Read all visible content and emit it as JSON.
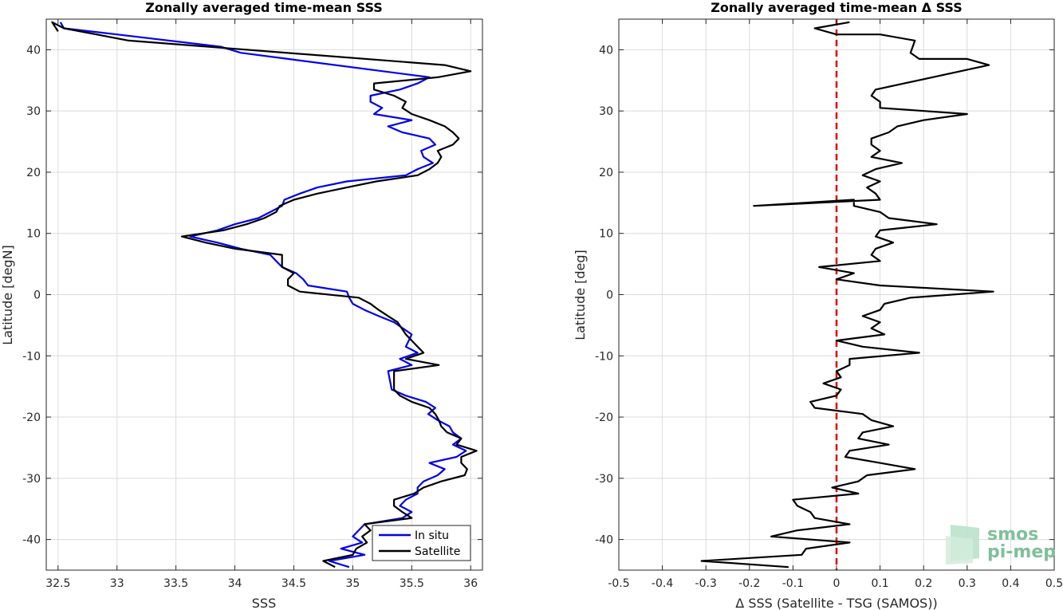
{
  "chart_data": [
    {
      "type": "line",
      "title": "Zonally averaged time-mean SSS",
      "xlabel": "SSS",
      "ylabel": "Latitude [degN]",
      "xlim": [
        32.4,
        36.1
      ],
      "ylim": [
        -45,
        45
      ],
      "xticks": [
        "32.5",
        "33",
        "33.5",
        "34",
        "34.5",
        "35",
        "35.5",
        "36"
      ],
      "yticks": [
        "40",
        "30",
        "20",
        "10",
        "0",
        "-10",
        "-20",
        "-30",
        "-40"
      ],
      "grid": true,
      "legend_position": "bottom-right",
      "series": [
        {
          "name": "In situ",
          "color": "#0000ee",
          "x": [
            34.97,
            34.8,
            35.1,
            34.9,
            35.08,
            35.0,
            35.05,
            35.1,
            35.42,
            35.5,
            35.4,
            35.45,
            35.55,
            35.55,
            35.6,
            35.72,
            35.78,
            35.65,
            35.88,
            35.96,
            35.85,
            35.92,
            35.85,
            35.82,
            35.72,
            35.64,
            35.7,
            35.62,
            35.45,
            35.33,
            35.3,
            35.5,
            35.4,
            35.55,
            35.45,
            35.5,
            35.35,
            35.22,
            35.1,
            35.0,
            34.97,
            34.95,
            34.62,
            34.58,
            34.52,
            34.4,
            34.35,
            34.3,
            34.05,
            33.85,
            33.62,
            33.85,
            34.0,
            34.2,
            34.3,
            34.4,
            34.42,
            34.55,
            34.7,
            34.95,
            35.45,
            35.55,
            35.68,
            35.6,
            35.58,
            35.7,
            35.65,
            35.42,
            35.3,
            35.5,
            35.18,
            35.25,
            35.15,
            35.15,
            35.4,
            35.55,
            35.65,
            34.45,
            34.05,
            33.88,
            33.0,
            32.55,
            32.52
          ],
          "y": [
            -44.5,
            -43.5,
            -42.5,
            -41.5,
            -40.5,
            -39.5,
            -38.5,
            -37.5,
            -36.5,
            -35.5,
            -34.5,
            -33.5,
            -32.5,
            -31.5,
            -30.5,
            -29.5,
            -28.5,
            -27.5,
            -26.5,
            -25.5,
            -24.5,
            -23.5,
            -22.5,
            -21.5,
            -20.5,
            -19.5,
            -18.5,
            -17.5,
            -16.5,
            -15.5,
            -12.5,
            -11.5,
            -10.5,
            -9.5,
            -8.5,
            -6.5,
            -4.5,
            -3.5,
            -2.5,
            -1.5,
            -0.5,
            0.5,
            1.5,
            2.5,
            3.5,
            4.5,
            5.5,
            6.5,
            7.5,
            8.5,
            9.5,
            10.5,
            11.5,
            12.5,
            13.5,
            14.5,
            15.5,
            16.5,
            17.5,
            18.5,
            19.5,
            20.5,
            21.5,
            22.5,
            23.5,
            24.5,
            25.5,
            26.5,
            27.5,
            28.5,
            29.5,
            30.5,
            31.5,
            32.5,
            33.5,
            34.5,
            35.5,
            38.5,
            39.5,
            40.5,
            42.5,
            43.5,
            44.5
          ]
        },
        {
          "name": "Satellite",
          "color": "#000000",
          "x": [
            34.85,
            34.75,
            35.0,
            35.03,
            35.12,
            35.08,
            35.15,
            35.1,
            35.5,
            35.42,
            35.35,
            35.35,
            35.52,
            35.6,
            35.75,
            35.95,
            35.97,
            35.92,
            35.92,
            36.05,
            35.88,
            35.92,
            35.8,
            35.75,
            35.73,
            35.7,
            35.65,
            35.5,
            35.4,
            35.35,
            35.35,
            35.73,
            35.45,
            35.6,
            35.55,
            35.45,
            35.38,
            35.3,
            35.22,
            35.15,
            35.05,
            34.55,
            34.45,
            34.45,
            34.5,
            34.4,
            34.4,
            34.4,
            34.0,
            33.75,
            33.55,
            33.9,
            34.1,
            34.25,
            34.35,
            34.38,
            34.5,
            34.7,
            34.95,
            35.2,
            35.55,
            35.65,
            35.72,
            35.75,
            35.72,
            35.85,
            35.9,
            35.85,
            35.78,
            35.65,
            35.5,
            35.42,
            35.45,
            35.35,
            35.18,
            35.18,
            35.72,
            36.0,
            35.78,
            33.1,
            32.55,
            32.45,
            32.5
          ],
          "y": [
            -44.5,
            -43.5,
            -42.5,
            -41.5,
            -40.5,
            -39.5,
            -38.5,
            -37.5,
            -36.5,
            -35.5,
            -34.5,
            -33.5,
            -32.5,
            -31.5,
            -30.5,
            -29.5,
            -28.5,
            -27.5,
            -26.5,
            -25.5,
            -24.5,
            -23.5,
            -22.5,
            -21.5,
            -20.5,
            -19.5,
            -18.5,
            -17.5,
            -16.5,
            -15.5,
            -12.5,
            -11.5,
            -10.5,
            -9.5,
            -8.5,
            -6.5,
            -4.5,
            -3.5,
            -2.5,
            -1.5,
            -0.5,
            0.5,
            1.5,
            2.5,
            3.5,
            4.5,
            5.5,
            6.5,
            7.5,
            8.5,
            9.5,
            10.5,
            11.5,
            12.5,
            13.5,
            14.5,
            15.5,
            16.5,
            17.5,
            18.5,
            19.5,
            20.5,
            21.5,
            22.5,
            23.5,
            24.5,
            25.5,
            26.5,
            27.5,
            28.5,
            29.5,
            30.5,
            31.5,
            32.5,
            33.5,
            34.5,
            35.5,
            36.5,
            37.5,
            41.5,
            43.5,
            44.5,
            43.0
          ]
        }
      ]
    },
    {
      "type": "line",
      "title": "Zonally averaged time-mean Δ SSS",
      "xlabel": "Δ SSS (Satellite - TSG (SAMOS))",
      "ylabel": "Latitude [deg]",
      "xlim": [
        -0.5,
        0.5
      ],
      "ylim": [
        -45,
        45
      ],
      "xticks": [
        "-0.5",
        "-0.4",
        "-0.3",
        "-0.2",
        "-0.1",
        "0",
        "0.1",
        "0.2",
        "0.3",
        "0.4",
        "0.5"
      ],
      "yticks": [
        "40",
        "30",
        "20",
        "10",
        "0",
        "-10",
        "-20",
        "-30",
        "-40"
      ],
      "grid": true,
      "reference_line": {
        "x": 0,
        "color": "#e00000",
        "style": "dashed"
      },
      "series": [
        {
          "name": "",
          "color": "#000000",
          "x": [
            -0.11,
            -0.31,
            -0.08,
            -0.07,
            0.03,
            -0.15,
            -0.09,
            0.03,
            -0.05,
            -0.06,
            -0.09,
            -0.1,
            0.05,
            -0.01,
            0.05,
            0.07,
            0.18,
            0.1,
            0.02,
            0.03,
            0.12,
            0.05,
            0.06,
            0.13,
            0.08,
            0.06,
            -0.05,
            -0.06,
            0.0,
            0.01,
            -0.03,
            0.01,
            0.0,
            0.03,
            0.03,
            0.19,
            0.06,
            0.0,
            0.11,
            0.08,
            0.1,
            0.06,
            0.1,
            0.11,
            0.17,
            0.36,
            0.1,
            0.0,
            0.04,
            -0.04,
            0.1,
            0.08,
            0.09,
            0.13,
            0.09,
            0.1,
            0.23,
            0.12,
            0.1,
            0.04,
            0.04,
            -0.19,
            0.1,
            0.09,
            0.07,
            0.1,
            0.06,
            0.09,
            0.15,
            0.08,
            0.1,
            0.08,
            0.08,
            0.12,
            0.14,
            0.2,
            0.3,
            0.1,
            0.1,
            0.08,
            0.09,
            0.35,
            0.3,
            0.19,
            0.17,
            0.18,
            0.1,
            0.0,
            -0.05,
            0.03
          ],
          "y": [
            -44.5,
            -43.5,
            -42.5,
            -41.5,
            -40.5,
            -39.5,
            -38.5,
            -37.5,
            -36.5,
            -35.5,
            -34.5,
            -33.5,
            -32.5,
            -31.5,
            -30.5,
            -29.5,
            -28.5,
            -27.5,
            -26.5,
            -25.5,
            -24.5,
            -23.5,
            -22.5,
            -21.5,
            -20.5,
            -19.5,
            -18.5,
            -17.5,
            -16.5,
            -15.5,
            -14.5,
            -13.5,
            -12.5,
            -11.5,
            -10.5,
            -9.5,
            -8.5,
            -7.5,
            -6.5,
            -5.5,
            -4.5,
            -3.5,
            -2.5,
            -1.5,
            -0.5,
            0.5,
            1.5,
            2.5,
            3.5,
            4.5,
            5.5,
            6.5,
            7.5,
            8.5,
            9.5,
            10.5,
            11.5,
            12.5,
            13.5,
            14.5,
            15.5,
            14.5,
            15.5,
            16.5,
            17.5,
            18.5,
            19.5,
            20.5,
            21.5,
            22.5,
            23.5,
            24.5,
            25.5,
            26.5,
            27.5,
            28.5,
            29.5,
            30.5,
            31.5,
            32.5,
            33.5,
            37.5,
            38.5,
            38.5,
            39.5,
            41.5,
            42.5,
            42.5,
            43.5,
            44.5
          ]
        }
      ]
    }
  ],
  "logo": {
    "line1": "smos",
    "line2": "pi-mep"
  }
}
